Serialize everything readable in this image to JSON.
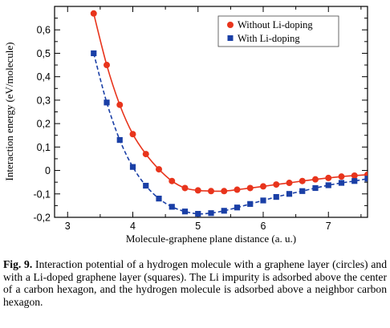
{
  "chart_data": {
    "type": "line",
    "xlabel": "Molecule-graphene plane distance (a. u.)",
    "ylabel": "Interaction energy (eV/molecule)",
    "xlim": [
      2.8,
      7.6
    ],
    "ylim": [
      -0.2,
      0.7
    ],
    "xticks": [
      3,
      4,
      5,
      6,
      7
    ],
    "yticks": [
      -0.2,
      -0.1,
      0,
      0.1,
      0.2,
      0.3,
      0.4,
      0.5,
      0.6
    ],
    "ytick_labels": [
      "-0,2",
      "-0,1",
      "0",
      "0,1",
      "0,2",
      "0,3",
      "0,4",
      "0,5",
      "0,6"
    ],
    "legend_position": "top-right",
    "series": [
      {
        "name": "Without Li-doping",
        "color": "#e8341c",
        "marker": "circle",
        "line": "solid",
        "x": [
          3.4,
          3.6,
          3.8,
          4.0,
          4.2,
          4.4,
          4.6,
          4.8,
          5.0,
          5.2,
          5.4,
          5.6,
          5.8,
          6.0,
          6.2,
          6.4,
          6.6,
          6.8,
          7.0,
          7.2,
          7.4,
          7.6
        ],
        "y": [
          0.67,
          0.45,
          0.28,
          0.155,
          0.07,
          0.005,
          -0.045,
          -0.075,
          -0.085,
          -0.088,
          -0.088,
          -0.082,
          -0.075,
          -0.068,
          -0.06,
          -0.053,
          -0.045,
          -0.038,
          -0.032,
          -0.026,
          -0.022,
          -0.018
        ]
      },
      {
        "name": "With Li-doping",
        "color": "#1a3fa6",
        "marker": "square",
        "line": "dashed",
        "x": [
          3.4,
          3.6,
          3.8,
          4.0,
          4.2,
          4.4,
          4.6,
          4.8,
          5.0,
          5.2,
          5.4,
          5.6,
          5.8,
          6.0,
          6.2,
          6.4,
          6.6,
          6.8,
          7.0,
          7.2,
          7.4,
          7.6
        ],
        "y": [
          0.5,
          0.29,
          0.13,
          0.015,
          -0.065,
          -0.12,
          -0.155,
          -0.175,
          -0.185,
          -0.182,
          -0.172,
          -0.158,
          -0.143,
          -0.128,
          -0.113,
          -0.1,
          -0.088,
          -0.075,
          -0.063,
          -0.053,
          -0.045,
          -0.035
        ]
      }
    ]
  },
  "caption": {
    "label": "Fig. 9.",
    "text": " Interaction potential of a hydrogen molecule with a graphene layer (circles) and with a Li-doped graphene layer (squares). The Li impurity is adsorbed above the center of a carbon hexagon, and the hydrogen molecule is adsorbed above a neighbor carbon hexagon."
  }
}
